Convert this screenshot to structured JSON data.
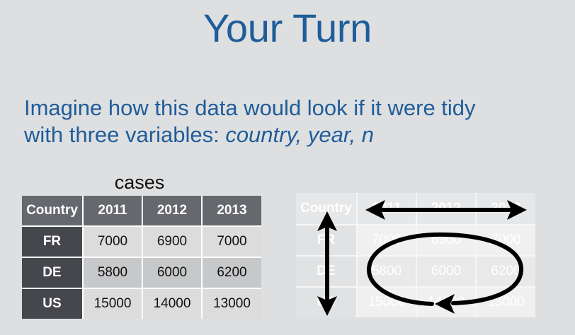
{
  "slide": {
    "title": "Your Turn",
    "prompt_line1": "Imagine how this data would look if it were tidy",
    "prompt_line2_prefix": "with three variables: ",
    "variables": "country, year, n"
  },
  "cases_table": {
    "caption": "cases",
    "headers": [
      "Country",
      "2011",
      "2012",
      "2013"
    ],
    "rows": [
      {
        "country": "FR",
        "values": [
          "7000",
          "6900",
          "7000"
        ]
      },
      {
        "country": "DE",
        "values": [
          "5800",
          "6000",
          "6200"
        ]
      },
      {
        "country": "US",
        "values": [
          "15000",
          "14000",
          "13000"
        ]
      }
    ]
  },
  "colors": {
    "title": "#1f5d9a",
    "header_bg": "#66686e",
    "row_head_bg": "#46474d",
    "arrow": "#000000"
  }
}
